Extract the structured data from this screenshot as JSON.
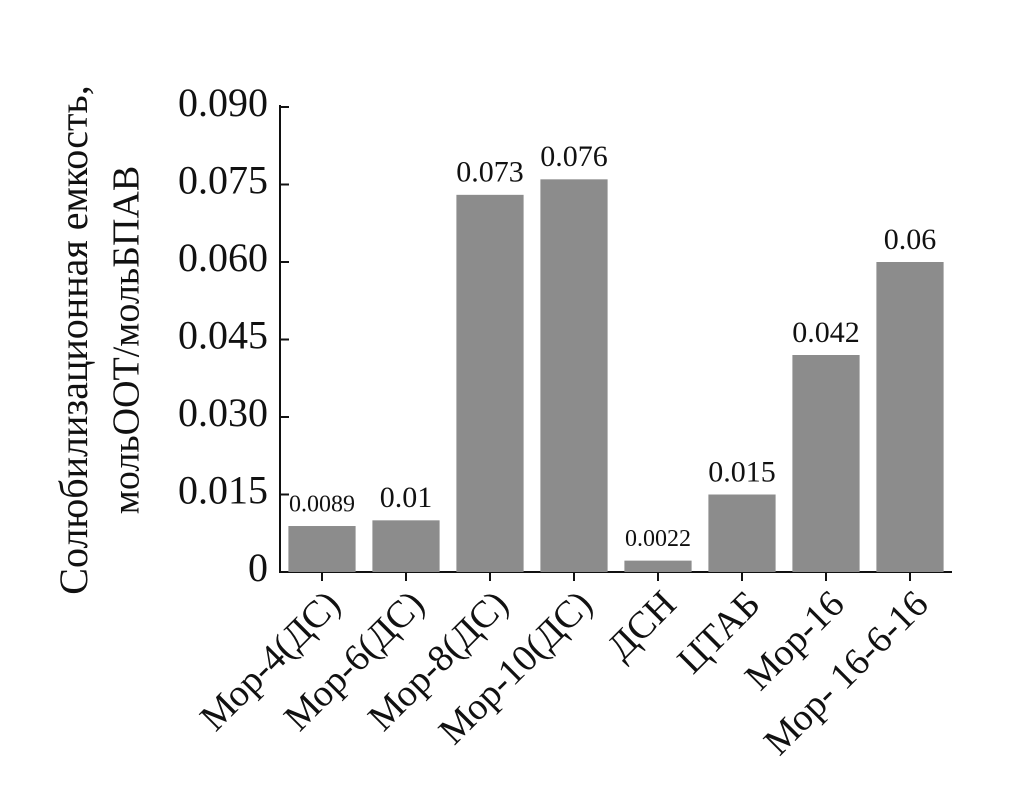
{
  "chart_data": {
    "type": "bar",
    "y_label_lines": [
      "Солюбилизационная емкость,",
      "мольООТ/мольБПАВ"
    ],
    "categories": [
      "Мор-4(ДС)",
      "Мор-6(ДС)",
      "Мор-8(ДС)",
      "Мор-10(ДС)",
      "ДСН",
      "ЦТАБ",
      "Мор-16",
      "Мор- 16-6-16"
    ],
    "values": [
      0.0089,
      0.01,
      0.073,
      0.076,
      0.0022,
      0.015,
      0.042,
      0.06
    ],
    "color": "#8c8c8c",
    "ylim": [
      0,
      0.09
    ],
    "yticks": [
      0,
      0.015,
      {
        "value": 0.03,
        "label": "0.030"
      },
      0.045,
      {
        "value": 0.06,
        "label": "0.060"
      },
      0.075,
      {
        "value": 0.09,
        "label": "0.090"
      }
    ],
    "grid": false
  }
}
